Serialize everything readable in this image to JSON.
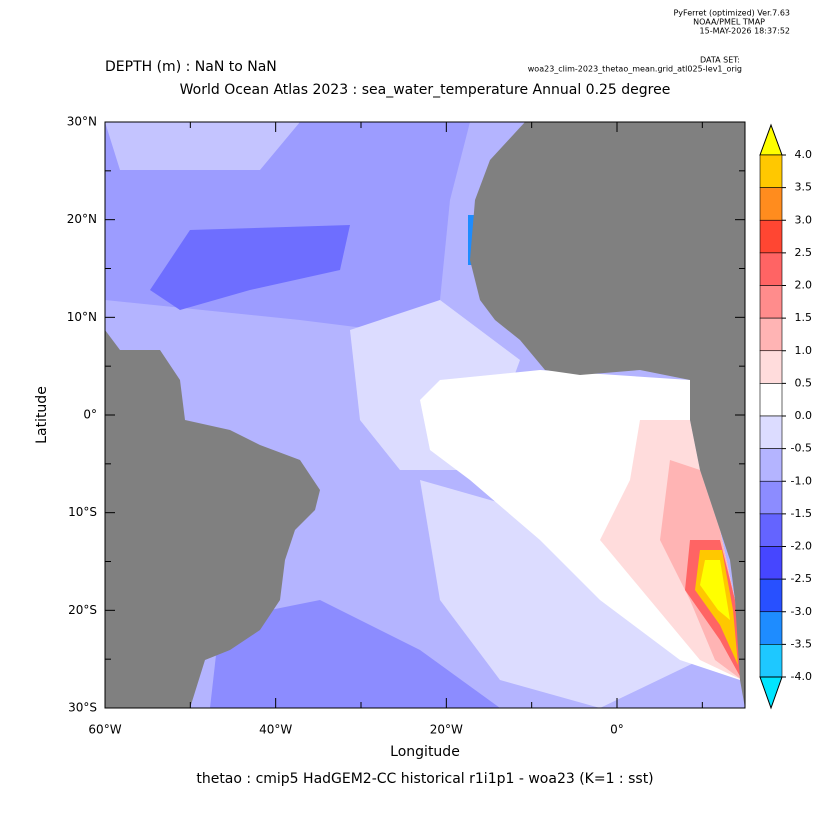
{
  "header": {
    "software": "PyFerret (optimized) Ver.7.63",
    "org": "NOAA/PMEL TMAP",
    "timestamp": "15-MAY-2026 18:37:52",
    "dataset_label": "DATA SET:",
    "dataset": "woa23_clim-2023_thetao_mean.grid_atl025-lev1_orig"
  },
  "chart_data": {
    "type": "heatmap",
    "subtitle": "DEPTH (m) : NaN to NaN",
    "title": "World Ocean Atlas 2023 : sea_water_temperature Annual  0.25 degree",
    "x_label": "Longitude",
    "y_label": "Latitude",
    "caption": "thetao : cmip5 HadGEM2-CC historical r1i1p1 - woa23  (K=1 : sst)",
    "xlim": [
      -60,
      15
    ],
    "ylim": [
      -30,
      30
    ],
    "xticks": [
      {
        "value": -60,
        "label": "60°W"
      },
      {
        "value": -40,
        "label": "40°W"
      },
      {
        "value": -20,
        "label": "20°W"
      },
      {
        "value": 0,
        "label": "0°"
      }
    ],
    "xminor": [
      -50,
      -30,
      -10,
      10
    ],
    "yticks": [
      {
        "value": -30,
        "label": "30°S"
      },
      {
        "value": -20,
        "label": "20°S"
      },
      {
        "value": -10,
        "label": "10°S"
      },
      {
        "value": 0,
        "label": "0°"
      },
      {
        "value": 10,
        "label": "10°N"
      },
      {
        "value": 20,
        "label": "20°N"
      },
      {
        "value": 30,
        "label": "30°N"
      }
    ],
    "yminor": [
      -25,
      -15,
      -5,
      5,
      15,
      25
    ],
    "land_color": "#808080",
    "colorbar": {
      "levels": [
        {
          "value": 4,
          "label": "4.0"
        },
        {
          "value": 3.5,
          "label": "3.5"
        },
        {
          "value": 3,
          "label": "3.0"
        },
        {
          "value": 2.5,
          "label": "2.5"
        },
        {
          "value": 2,
          "label": "2.0"
        },
        {
          "value": 1.5,
          "label": "1.5"
        },
        {
          "value": 1,
          "label": "1.0"
        },
        {
          "value": 0.5,
          "label": "0.5"
        },
        {
          "value": 0,
          "label": "0.0"
        },
        {
          "value": -0.5,
          "label": "-0.5"
        },
        {
          "value": -1,
          "label": "-1.0"
        },
        {
          "value": -1.5,
          "label": "-1.5"
        },
        {
          "value": -2,
          "label": "-2.0"
        },
        {
          "value": -2.5,
          "label": "-2.5"
        },
        {
          "value": -3,
          "label": "-3.0"
        },
        {
          "value": -3.5,
          "label": "-3.5"
        },
        {
          "value": -4,
          "label": "-4.0"
        }
      ],
      "colors": [
        "#ffff00",
        "#ffc800",
        "#ff8c1e",
        "#ff4632",
        "#ff6464",
        "#ff8c8c",
        "#ffb4b4",
        "#ffdcdc",
        "#ffffff",
        "#dcdcff",
        "#b4b4ff",
        "#8c8cff",
        "#6464ff",
        "#4646ff",
        "#2850ff",
        "#1e8cff",
        "#1ec8ff",
        "#00e5ff"
      ]
    }
  }
}
